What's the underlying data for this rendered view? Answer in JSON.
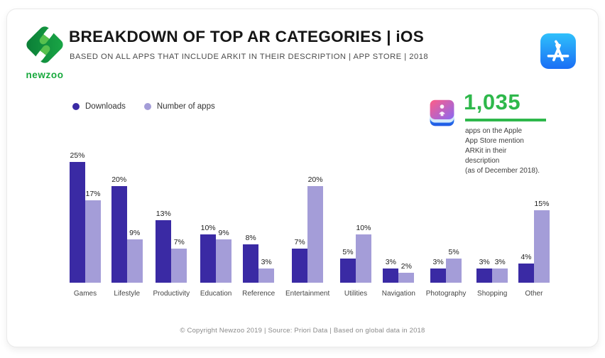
{
  "brand": {
    "logo_text": "newzoo"
  },
  "header": {
    "title": "BREAKDOWN OF TOP AR CATEGORIES | iOS",
    "subtitle": "BASED ON ALL APPS THAT INCLUDE ARKIT IN THEIR DESCRIPTION | APP STORE | 2018"
  },
  "icons": {
    "newzoo_logo": "newzoo-diamond-logo",
    "app_store": "app-store-icon",
    "arkit": "arkit-cube-icon"
  },
  "legend": {
    "items": [
      {
        "label": "Downloads",
        "color": "#3A2AA4"
      },
      {
        "label": "Number of apps",
        "color": "#A49DD8"
      }
    ]
  },
  "stat": {
    "value": "1,035",
    "description": [
      "apps on the Apple",
      "App Store mention",
      "ARKit in their",
      "description",
      "(as of December 2018)."
    ]
  },
  "chart_data": {
    "type": "bar",
    "title": "BREAKDOWN OF TOP AR CATEGORIES | iOS",
    "xlabel": "",
    "ylabel": "",
    "ylim": [
      0,
      25
    ],
    "grid": false,
    "legend_position": "top-left",
    "value_suffix": "%",
    "categories": [
      "Games",
      "Lifestyle",
      "Productivity",
      "Education",
      "Reference",
      "Entertainment",
      "Utilities",
      "Navigation",
      "Photography",
      "Shopping",
      "Other"
    ],
    "series": [
      {
        "name": "Downloads",
        "color": "#3A2AA4",
        "values": [
          25,
          20,
          13,
          10,
          8,
          7,
          5,
          3,
          3,
          3,
          4
        ]
      },
      {
        "name": "Number of apps",
        "color": "#A49DD8",
        "values": [
          17,
          9,
          7,
          9,
          3,
          20,
          10,
          2,
          5,
          3,
          15
        ]
      }
    ]
  },
  "footer": {
    "copyright": "© Copyright Newzoo 2019 | Source: Priori Data | Based on global data in 2018"
  },
  "colors": {
    "accent_green": "#2EB84B",
    "downloads": "#3A2AA4",
    "number_of_apps": "#A49DD8"
  }
}
